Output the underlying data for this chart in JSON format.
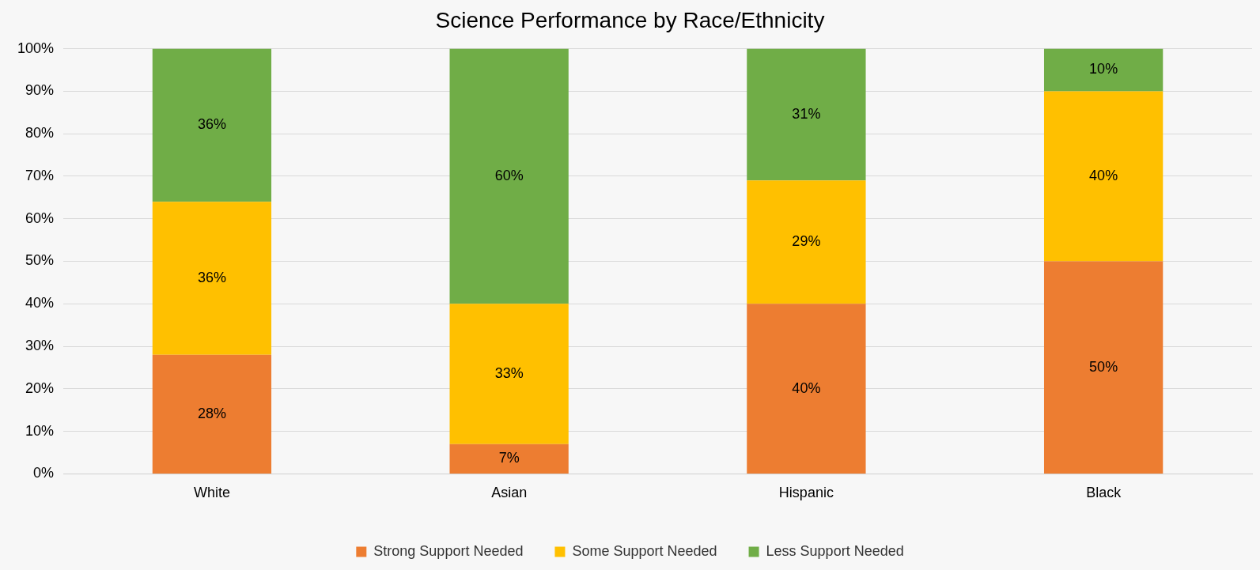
{
  "chart_data": {
    "type": "bar",
    "title": "Science Performance by Race/Ethnicity",
    "stacked": true,
    "categories": [
      "White",
      "Asian",
      "Hispanic",
      "Black"
    ],
    "series": [
      {
        "name": "Strong Support Needed",
        "color": "#ed7d31",
        "values": [
          28,
          7,
          40,
          50
        ],
        "value_labels": [
          "28%",
          "7%",
          "40%",
          "50%"
        ]
      },
      {
        "name": "Some Support Needed",
        "color": "#ffc000",
        "values": [
          36,
          33,
          29,
          40
        ],
        "value_labels": [
          "36%",
          "33%",
          "29%",
          "40%"
        ]
      },
      {
        "name": "Less Support Needed",
        "color": "#70ad47",
        "values": [
          36,
          60,
          31,
          10
        ],
        "value_labels": [
          "36%",
          "60%",
          "31%",
          "10%"
        ]
      }
    ],
    "ylim": [
      0,
      100
    ],
    "yticks": [
      {
        "value": 0,
        "label": "0%"
      },
      {
        "value": 10,
        "label": "10%"
      },
      {
        "value": 20,
        "label": "20%"
      },
      {
        "value": 30,
        "label": "30%"
      },
      {
        "value": 40,
        "label": "40%"
      },
      {
        "value": 50,
        "label": "50%"
      },
      {
        "value": 60,
        "label": "60%"
      },
      {
        "value": 70,
        "label": "70%"
      },
      {
        "value": 80,
        "label": "80%"
      },
      {
        "value": 90,
        "label": "90%"
      },
      {
        "value": 100,
        "label": "100%"
      }
    ],
    "grid": "y",
    "legend": "bottom"
  }
}
